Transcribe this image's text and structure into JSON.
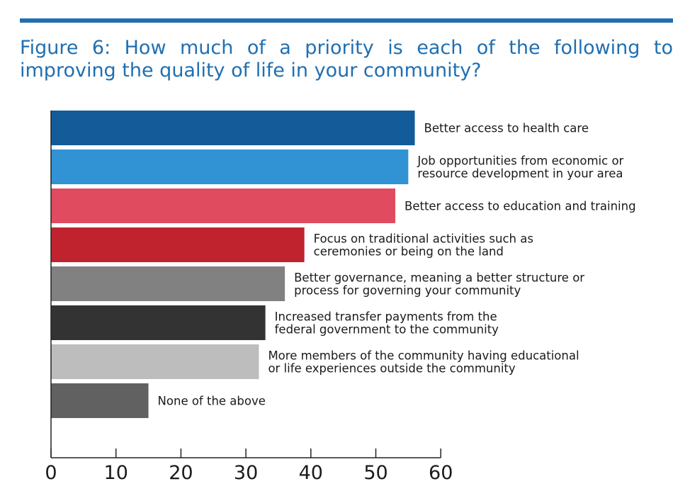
{
  "figure": {
    "title": "Figure 6: How much of a priority is each of the following to improving the quality of life in your community?"
  },
  "chart_data": {
    "type": "bar",
    "orientation": "horizontal",
    "xlim": [
      0,
      60
    ],
    "xticks": [
      0,
      10,
      20,
      30,
      40,
      50,
      60
    ],
    "grid": false,
    "bars": [
      {
        "label": [
          "Better access to health care"
        ],
        "value": 56,
        "color": "#145c99"
      },
      {
        "label": [
          "Job opportunities from economic or",
          "resource development in your area"
        ],
        "value": 55,
        "color": "#3193d4"
      },
      {
        "label": [
          "Better access to education and training"
        ],
        "value": 53,
        "color": "#e04b5f"
      },
      {
        "label": [
          "Focus on traditional activities such as",
          "ceremonies or being on the land"
        ],
        "value": 39,
        "color": "#c0232e"
      },
      {
        "label": [
          "Better governance, meaning a better structure or",
          "process for governing your community"
        ],
        "value": 36,
        "color": "#818181"
      },
      {
        "label": [
          "Increased transfer payments from the",
          "federal government to the community"
        ],
        "value": 33,
        "color": "#333333"
      },
      {
        "label": [
          "More members of the community having educational",
          "or life experiences outside the community"
        ],
        "value": 32,
        "color": "#bdbdbd"
      },
      {
        "label": [
          "None of the above"
        ],
        "value": 15,
        "color": "#616161"
      }
    ]
  }
}
